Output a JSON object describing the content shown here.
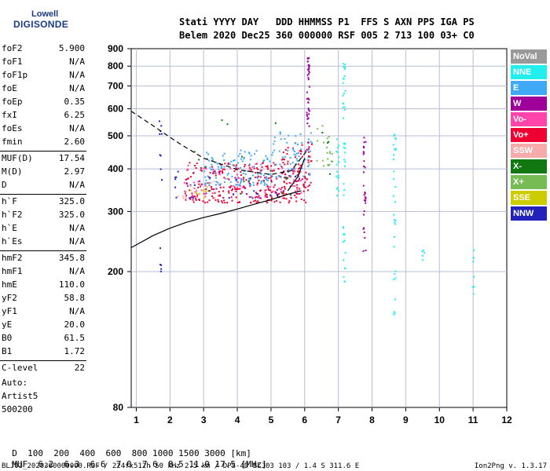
{
  "logo": {
    "line1": "Lowell",
    "line2": "DIGISONDE"
  },
  "header": {
    "line1": "Stati YYYY DAY   DDD HHMMSS P1  FFS S AXN PPS IGA PS",
    "line2": "Belem 2020 Dec25 360 000000 RSF 005 2 713 100 03+ C0"
  },
  "params": [
    {
      "name": "foF2",
      "value": "5.900"
    },
    {
      "name": "foF1",
      "value": "N/A"
    },
    {
      "name": "foF1p",
      "value": "N/A"
    },
    {
      "name": "foE",
      "value": "N/A"
    },
    {
      "name": "foEp",
      "value": "0.35"
    },
    {
      "name": "fxI",
      "value": "6.25"
    },
    {
      "name": "foEs",
      "value": "N/A"
    },
    {
      "name": "fmin",
      "value": "2.60"
    },
    {
      "name": "MUF(D)",
      "value": "17.54"
    },
    {
      "name": "M(D)",
      "value": "2.97"
    },
    {
      "name": "D",
      "value": "N/A"
    },
    {
      "name": "h`F",
      "value": "325.0"
    },
    {
      "name": "h`F2",
      "value": "325.0"
    },
    {
      "name": "h`E",
      "value": "N/A"
    },
    {
      "name": "h`Es",
      "value": "N/A"
    },
    {
      "name": "hmF2",
      "value": "345.8"
    },
    {
      "name": "hmF1",
      "value": "N/A"
    },
    {
      "name": "hmE",
      "value": "110.0"
    },
    {
      "name": "yF2",
      "value": "58.8"
    },
    {
      "name": "yF1",
      "value": "N/A"
    },
    {
      "name": "yE",
      "value": "20.0"
    },
    {
      "name": "B0",
      "value": "61.5"
    },
    {
      "name": "B1",
      "value": "1.72"
    },
    {
      "name": "C-level",
      "value": "22"
    }
  ],
  "auto": {
    "line1": "Auto:",
    "line2": "Artist5",
    "line3": "500200"
  },
  "muf_table": {
    "d_label": "D",
    "d_values": "  100  200  400  600  800 1000 1500 3000 [km]",
    "muf_label": "MUF",
    "muf_values": "  6.2  6.3  6.6  7.0  7.6  8.5 11.0 17.5 [MHz]"
  },
  "footer": {
    "left": "BLJ03_2020360000000.RSF / 224fx512h 50 kHz 2.5 km / DPS-4D BLJ03 103 / 1.4 S 311.6 E",
    "right": "Ion2Png v. 1.3.17"
  },
  "legend": [
    {
      "label": "NoVal",
      "color": "#999999"
    },
    {
      "label": "NNE",
      "color": "#22eeee"
    },
    {
      "label": "E",
      "color": "#3fa9f5"
    },
    {
      "label": "W",
      "color": "#a0009a"
    },
    {
      "label": "Vo-",
      "color": "#ff44aa"
    },
    {
      "label": "Vo+",
      "color": "#ee0033"
    },
    {
      "label": "SSW",
      "color": "#f7aaaa"
    },
    {
      "label": "X-",
      "color": "#117711"
    },
    {
      "label": "X+",
      "color": "#77bb55"
    },
    {
      "label": "SSE",
      "color": "#cccc00"
    },
    {
      "label": "NNW",
      "color": "#2222bb"
    }
  ],
  "chart_data": {
    "type": "scatter",
    "xlabel": "",
    "ylabel": "",
    "xlim": [
      0.85,
      12
    ],
    "ylim": [
      80,
      900
    ],
    "y_scale": "log",
    "grid": true,
    "xticks": [
      1,
      2,
      3,
      4,
      5,
      6,
      7,
      8,
      9,
      10,
      11,
      12
    ],
    "yticks": [
      80,
      200,
      300,
      400,
      500,
      600,
      700,
      800,
      900
    ],
    "legend_placement": "right-outside",
    "clusters": [
      {
        "name": "Vo+",
        "color": "#ee0033",
        "x_range": [
          2.4,
          6.1
        ],
        "y_range": [
          320,
          420
        ],
        "n": 260
      },
      {
        "name": "Vo+",
        "color": "#ee0033",
        "x_range": [
          5.2,
          6.2
        ],
        "y_range": [
          360,
          480
        ],
        "n": 60
      },
      {
        "name": "E",
        "color": "#3fa9f5",
        "x_range": [
          3.0,
          5.0
        ],
        "y_range": [
          360,
          460
        ],
        "n": 120
      },
      {
        "name": "E",
        "color": "#3fa9f5",
        "x_range": [
          5.0,
          6.2
        ],
        "y_range": [
          380,
          520
        ],
        "n": 70
      },
      {
        "name": "Vo-",
        "color": "#ff44aa",
        "x_range": [
          2.4,
          6.0
        ],
        "y_range": [
          330,
          420
        ],
        "n": 60
      },
      {
        "name": "W",
        "color": "#a0009a",
        "x_range": [
          2.4,
          6.0
        ],
        "y_range": [
          330,
          400
        ],
        "n": 35
      },
      {
        "name": "NNW",
        "color": "#2222bb",
        "x_range": [
          2.0,
          5.8
        ],
        "y_range": [
          330,
          400
        ],
        "n": 25
      },
      {
        "name": "SSW",
        "color": "#f7aaaa",
        "x_range": [
          2.2,
          3.5
        ],
        "y_range": [
          330,
          370
        ],
        "n": 20
      },
      {
        "name": "X-",
        "color": "#117711",
        "x_range": [
          2.3,
          6.8
        ],
        "y_range": [
          330,
          560
        ],
        "n": 20
      },
      {
        "name": "X+",
        "color": "#77bb55",
        "x_range": [
          6.3,
          6.8
        ],
        "y_range": [
          410,
          560
        ],
        "n": 20
      },
      {
        "name": "SSE",
        "color": "#cccc00",
        "x_range": [
          2.5,
          3.2
        ],
        "y_range": [
          330,
          360
        ],
        "n": 8
      }
    ],
    "vertical_streaks": [
      {
        "name": "W",
        "color": "#a0009a",
        "x": 6.08,
        "y_range": [
          450,
          890
        ],
        "n": 40
      },
      {
        "name": "W",
        "color": "#a0009a",
        "x": 7.75,
        "y_range": [
          230,
          520
        ],
        "n": 30
      },
      {
        "name": "NNE",
        "color": "#22eeee",
        "x": 7.15,
        "y_range": [
          180,
          820
        ],
        "n": 45
      },
      {
        "name": "NNE",
        "color": "#22eeee",
        "x": 8.65,
        "y_range": [
          150,
          520
        ],
        "n": 30
      },
      {
        "name": "NNE",
        "color": "#22eeee",
        "x": 6.95,
        "y_range": [
          330,
          500
        ],
        "n": 18
      },
      {
        "name": "NNW",
        "color": "#2222bb",
        "x": 1.7,
        "y_range": [
          195,
          560
        ],
        "n": 14
      },
      {
        "name": "NNE",
        "color": "#22eeee",
        "x": 11.0,
        "y_range": [
          170,
          240
        ],
        "n": 8
      },
      {
        "name": "NNE",
        "color": "#22eeee",
        "x": 9.5,
        "y_range": [
          210,
          250
        ],
        "n": 5
      }
    ],
    "dashed_curve": {
      "x": [
        0.85,
        1.5,
        2.2,
        3.0,
        4.0,
        5.0,
        5.6,
        6.05
      ],
      "y": [
        590,
        535,
        480,
        430,
        398,
        385,
        395,
        450
      ]
    },
    "solid_curve": {
      "x": [
        0.85,
        1.5,
        2.0,
        2.5,
        3.0,
        3.5,
        4.0,
        4.5,
        5.0,
        5.5,
        5.9
      ],
      "y": [
        235,
        255,
        268,
        279,
        288,
        296,
        305,
        315,
        325,
        337,
        345
      ]
    },
    "solid_curve_upper": {
      "x": [
        5.5,
        5.8,
        6.0
      ],
      "y": [
        345,
        380,
        430
      ]
    }
  }
}
